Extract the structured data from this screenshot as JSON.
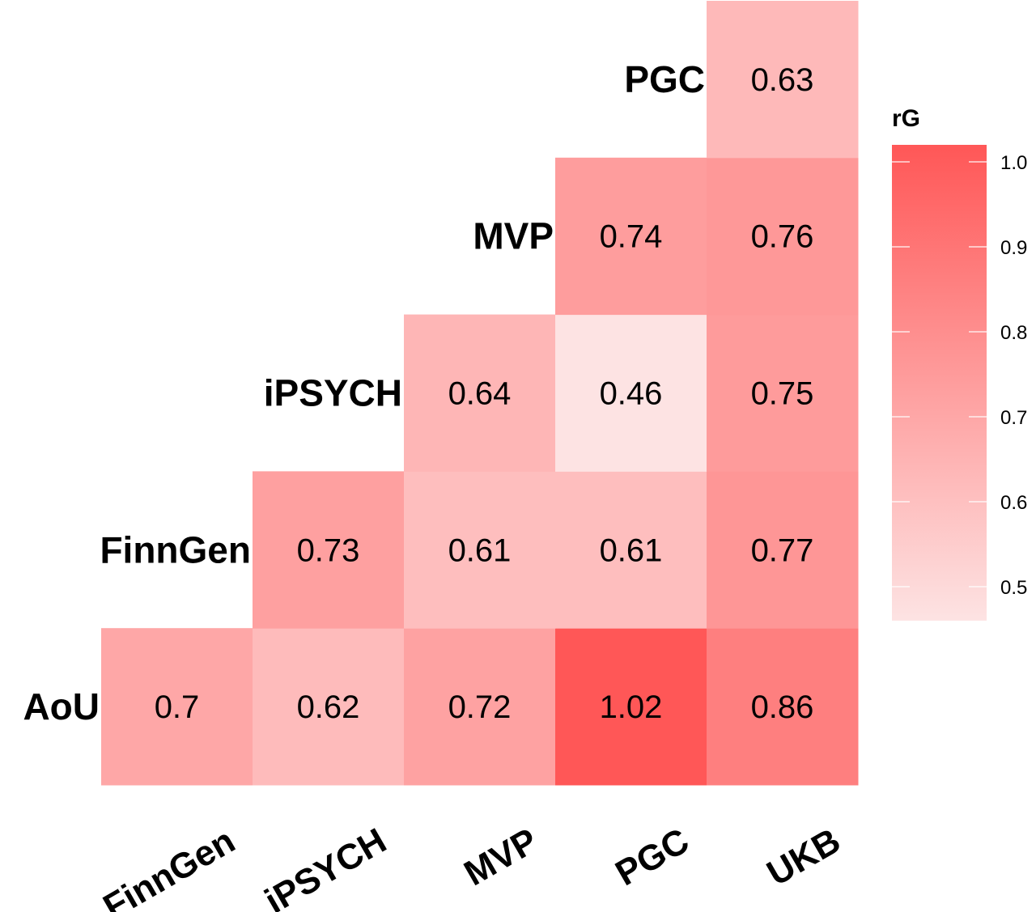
{
  "chart_data": {
    "type": "heatmap",
    "title": "",
    "row_labels": [
      "AoU",
      "FinnGen",
      "iPSYCH",
      "MVP",
      "PGC"
    ],
    "col_labels": [
      "FinnGen",
      "iPSYCH",
      "MVP",
      "PGC",
      "UKB"
    ],
    "cells": [
      {
        "row": "AoU",
        "col": "FinnGen",
        "value": 0.7,
        "label": "0.7"
      },
      {
        "row": "AoU",
        "col": "iPSYCH",
        "value": 0.62,
        "label": "0.62"
      },
      {
        "row": "AoU",
        "col": "MVP",
        "value": 0.72,
        "label": "0.72"
      },
      {
        "row": "AoU",
        "col": "PGC",
        "value": 1.02,
        "label": "1.02"
      },
      {
        "row": "AoU",
        "col": "UKB",
        "value": 0.86,
        "label": "0.86"
      },
      {
        "row": "FinnGen",
        "col": "iPSYCH",
        "value": 0.73,
        "label": "0.73"
      },
      {
        "row": "FinnGen",
        "col": "MVP",
        "value": 0.61,
        "label": "0.61"
      },
      {
        "row": "FinnGen",
        "col": "PGC",
        "value": 0.61,
        "label": "0.61"
      },
      {
        "row": "FinnGen",
        "col": "UKB",
        "value": 0.77,
        "label": "0.77"
      },
      {
        "row": "iPSYCH",
        "col": "MVP",
        "value": 0.64,
        "label": "0.64"
      },
      {
        "row": "iPSYCH",
        "col": "PGC",
        "value": 0.46,
        "label": "0.46"
      },
      {
        "row": "iPSYCH",
        "col": "UKB",
        "value": 0.75,
        "label": "0.75"
      },
      {
        "row": "MVP",
        "col": "PGC",
        "value": 0.74,
        "label": "0.74"
      },
      {
        "row": "MVP",
        "col": "UKB",
        "value": 0.76,
        "label": "0.76"
      },
      {
        "row": "PGC",
        "col": "UKB",
        "value": 0.63,
        "label": "0.63"
      }
    ],
    "legend": {
      "title": "rG",
      "placement": "right",
      "range": [
        0.46,
        1.02
      ],
      "ticks": [
        "1.0",
        "0.9",
        "0.8",
        "0.7",
        "0.6",
        "0.5"
      ],
      "color_low": "#fde3e3",
      "color_high": "#ff5757"
    }
  }
}
